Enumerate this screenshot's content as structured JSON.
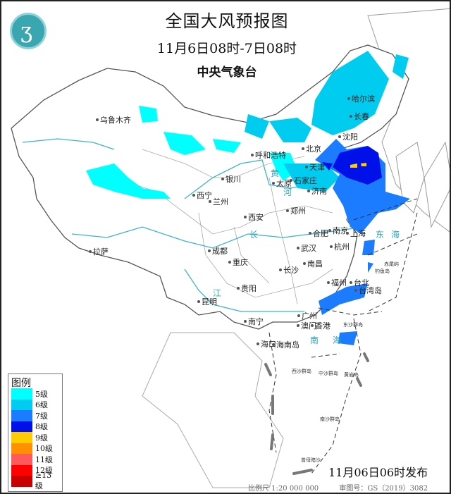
{
  "header": {
    "title": "全国大风预报图",
    "period": "11月6日08时-7日08时",
    "agency": "中央气象台"
  },
  "legend": {
    "title": "图例",
    "items": [
      {
        "label": "5级",
        "color": "#00ffff"
      },
      {
        "label": "6级",
        "color": "#00ccf0"
      },
      {
        "label": "7级",
        "color": "#1b7cff"
      },
      {
        "label": "8级",
        "color": "#0010e8"
      },
      {
        "label": "9级",
        "color": "#ffcc00"
      },
      {
        "label": "10级",
        "color": "#ff9000"
      },
      {
        "label": "11级",
        "color": "#ff5a5a"
      },
      {
        "label": "12级",
        "color": "#ff0000"
      },
      {
        "label": "≥13级",
        "color": "#c80000"
      }
    ]
  },
  "cities": [
    "乌鲁木齐",
    "哈尔滨",
    "长春",
    "沈阳",
    "北京",
    "呼和浩特",
    "天津",
    "石家庄",
    "太原",
    "济南",
    "银川",
    "西宁",
    "兰州",
    "西安",
    "郑州",
    "合肥",
    "南京",
    "上海",
    "杭州",
    "成都",
    "武汉",
    "重庆",
    "长沙",
    "南昌",
    "拉萨",
    "贵阳",
    "福州",
    "台北",
    "台湾岛",
    "昆明",
    "广州",
    "澳门",
    "香港",
    "南宁",
    "海口",
    "海南岛"
  ],
  "seas": [
    "东",
    "海",
    "南",
    "海",
    "长",
    "江",
    "黄",
    "河"
  ],
  "islands": [
    "赤尾屿",
    "钓鱼岛",
    "东沙群岛",
    "西沙群岛",
    "中沙群岛",
    "黄岩岛",
    "南沙群岛",
    "曾母暗沙"
  ],
  "issued": "11月06日06时发布",
  "footer": {
    "scale": "比例尺 1:20 000 000",
    "approval": "审图号：GS（2019）3082号"
  }
}
